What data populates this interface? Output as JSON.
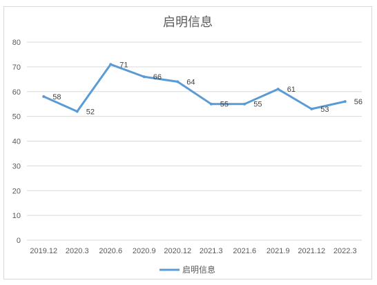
{
  "chart_data": {
    "type": "line",
    "title": "启明信息",
    "xlabel": "",
    "ylabel": "",
    "categories": [
      "2019.12",
      "2020.3",
      "2020.6",
      "2020.9",
      "2020.12",
      "2021.3",
      "2021.6",
      "2021.9",
      "2021.12",
      "2022.3"
    ],
    "series": [
      {
        "name": "启明信息",
        "values": [
          58,
          52,
          71,
          66,
          64,
          55,
          55,
          61,
          53,
          56
        ],
        "color": "#5b9bd5"
      }
    ],
    "ylim": [
      0,
      80
    ],
    "yticks": [
      0,
      10,
      20,
      30,
      40,
      50,
      60,
      70,
      80
    ],
    "grid": true,
    "legend_position": "bottom",
    "data_labels": true
  }
}
